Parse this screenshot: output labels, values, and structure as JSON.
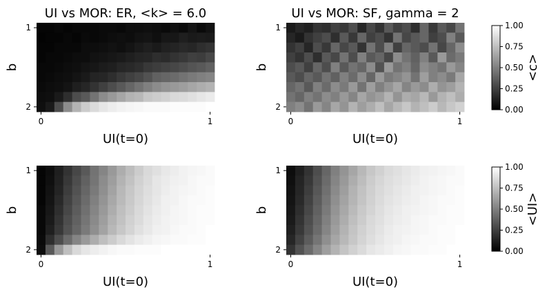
{
  "figure": {
    "background": "#ffffff"
  },
  "chart_data": [
    {
      "type": "heatmap",
      "title": "UI vs MOR: ER, <k> = 6.0",
      "xlabel": "UI(t=0)",
      "ylabel": "b",
      "x_range": [
        0,
        1
      ],
      "y_range": [
        1,
        2
      ],
      "x_ticks": [
        "0",
        "1"
      ],
      "y_ticks": [
        "1",
        "2"
      ],
      "colormap": "gray",
      "vmin": 0,
      "vmax": 1,
      "colorbar_label": "<c>",
      "values": [
        [
          0.02,
          0.02,
          0.03,
          0.02,
          0.03,
          0.03,
          0.03,
          0.04,
          0.04,
          0.03,
          0.05,
          0.05,
          0.06,
          0.05,
          0.04,
          0.06,
          0.04,
          0.08,
          0.04,
          0.07
        ],
        [
          0.01,
          0.02,
          0.02,
          0.03,
          0.02,
          0.04,
          0.03,
          0.04,
          0.05,
          0.06,
          0.05,
          0.07,
          0.08,
          0.06,
          0.09,
          0.09,
          0.12,
          0.1,
          0.11,
          0.1
        ],
        [
          0.02,
          0.02,
          0.03,
          0.03,
          0.03,
          0.05,
          0.05,
          0.06,
          0.07,
          0.06,
          0.08,
          0.1,
          0.12,
          0.1,
          0.13,
          0.14,
          0.16,
          0.15,
          0.18,
          0.2
        ],
        [
          0.02,
          0.03,
          0.03,
          0.04,
          0.05,
          0.05,
          0.07,
          0.08,
          0.09,
          0.1,
          0.12,
          0.14,
          0.15,
          0.18,
          0.17,
          0.2,
          0.22,
          0.25,
          0.24,
          0.28
        ],
        [
          0.03,
          0.03,
          0.04,
          0.05,
          0.06,
          0.08,
          0.09,
          0.11,
          0.12,
          0.15,
          0.16,
          0.18,
          0.22,
          0.24,
          0.26,
          0.28,
          0.3,
          0.33,
          0.35,
          0.38
        ],
        [
          0.03,
          0.04,
          0.05,
          0.06,
          0.08,
          0.1,
          0.14,
          0.15,
          0.18,
          0.22,
          0.25,
          0.28,
          0.32,
          0.38,
          0.4,
          0.42,
          0.45,
          0.48,
          0.5,
          0.52
        ],
        [
          0.04,
          0.05,
          0.06,
          0.08,
          0.12,
          0.15,
          0.2,
          0.25,
          0.3,
          0.35,
          0.4,
          0.45,
          0.5,
          0.55,
          0.58,
          0.6,
          0.62,
          0.65,
          0.68,
          0.7
        ],
        [
          0.05,
          0.06,
          0.1,
          0.18,
          0.3,
          0.35,
          0.45,
          0.55,
          0.6,
          0.65,
          0.7,
          0.72,
          0.78,
          0.8,
          0.82,
          0.85,
          0.86,
          0.88,
          0.9,
          0.92
        ],
        [
          0.06,
          0.1,
          0.3,
          0.55,
          0.7,
          0.8,
          0.86,
          0.9,
          0.93,
          0.95,
          0.96,
          0.97,
          0.98,
          0.98,
          0.98,
          0.99,
          0.99,
          0.99,
          0.99,
          1.0
        ]
      ]
    },
    {
      "type": "heatmap",
      "title": "UI vs MOR: SF, gamma = 2",
      "xlabel": "UI(t=0)",
      "ylabel": "b",
      "x_range": [
        0,
        1
      ],
      "y_range": [
        1,
        2
      ],
      "x_ticks": [
        "0",
        "1"
      ],
      "y_ticks": [
        "1",
        "2"
      ],
      "colormap": "gray",
      "vmin": 0,
      "vmax": 1,
      "colorbar_label": "<c>",
      "values": [
        [
          0.1,
          0.15,
          0.12,
          0.2,
          0.18,
          0.25,
          0.22,
          0.3,
          0.15,
          0.28,
          0.2,
          0.35,
          0.25,
          0.3,
          0.18,
          0.4,
          0.22,
          0.35,
          0.28,
          0.45
        ],
        [
          0.15,
          0.1,
          0.2,
          0.25,
          0.3,
          0.18,
          0.35,
          0.22,
          0.4,
          0.25,
          0.3,
          0.2,
          0.45,
          0.28,
          0.35,
          0.4,
          0.25,
          0.3,
          0.5,
          0.35
        ],
        [
          0.2,
          0.25,
          0.15,
          0.3,
          0.22,
          0.4,
          0.28,
          0.35,
          0.2,
          0.45,
          0.3,
          0.5,
          0.25,
          0.4,
          0.35,
          0.3,
          0.45,
          0.28,
          0.4,
          0.55
        ],
        [
          0.25,
          0.2,
          0.3,
          0.18,
          0.35,
          0.28,
          0.45,
          0.3,
          0.5,
          0.35,
          0.4,
          0.28,
          0.55,
          0.45,
          0.38,
          0.5,
          0.35,
          0.6,
          0.42,
          0.48
        ],
        [
          0.3,
          0.35,
          0.25,
          0.4,
          0.3,
          0.5,
          0.35,
          0.45,
          0.4,
          0.55,
          0.32,
          0.6,
          0.45,
          0.5,
          0.4,
          0.55,
          0.5,
          0.45,
          0.6,
          0.52
        ],
        [
          0.35,
          0.3,
          0.4,
          0.35,
          0.45,
          0.38,
          0.5,
          0.42,
          0.55,
          0.4,
          0.6,
          0.48,
          0.52,
          0.58,
          0.45,
          0.62,
          0.5,
          0.55,
          0.48,
          0.65
        ],
        [
          0.4,
          0.45,
          0.35,
          0.5,
          0.42,
          0.55,
          0.48,
          0.6,
          0.45,
          0.62,
          0.5,
          0.58,
          0.65,
          0.52,
          0.6,
          0.55,
          0.68,
          0.58,
          0.62,
          0.7
        ],
        [
          0.45,
          0.4,
          0.5,
          0.45,
          0.55,
          0.5,
          0.6,
          0.52,
          0.65,
          0.58,
          0.62,
          0.7,
          0.58,
          0.68,
          0.65,
          0.72,
          0.6,
          0.7,
          0.75,
          0.68
        ],
        [
          0.5,
          0.55,
          0.45,
          0.6,
          0.52,
          0.65,
          0.58,
          0.7,
          0.62,
          0.68,
          0.75,
          0.65,
          0.72,
          0.78,
          0.7,
          0.75,
          0.8,
          0.72,
          0.78,
          0.82
        ]
      ]
    },
    {
      "type": "heatmap",
      "title": "",
      "xlabel": "UI(t=0)",
      "ylabel": "b",
      "x_range": [
        0,
        1
      ],
      "y_range": [
        1,
        2
      ],
      "x_ticks": [
        "0",
        "1"
      ],
      "y_ticks": [
        "1",
        "2"
      ],
      "colormap": "gray",
      "vmin": 0,
      "vmax": 1,
      "colorbar_label": "<UI>",
      "values": [
        [
          0.02,
          0.05,
          0.12,
          0.2,
          0.28,
          0.35,
          0.45,
          0.52,
          0.6,
          0.68,
          0.74,
          0.8,
          0.85,
          0.88,
          0.91,
          0.93,
          0.95,
          0.96,
          0.97,
          0.98
        ],
        [
          0.02,
          0.06,
          0.13,
          0.22,
          0.3,
          0.38,
          0.46,
          0.55,
          0.62,
          0.7,
          0.76,
          0.82,
          0.86,
          0.9,
          0.92,
          0.94,
          0.95,
          0.97,
          0.98,
          0.98
        ],
        [
          0.02,
          0.07,
          0.14,
          0.24,
          0.32,
          0.4,
          0.48,
          0.56,
          0.64,
          0.72,
          0.78,
          0.83,
          0.87,
          0.9,
          0.93,
          0.95,
          0.96,
          0.97,
          0.98,
          0.99
        ],
        [
          0.02,
          0.08,
          0.16,
          0.26,
          0.34,
          0.42,
          0.5,
          0.58,
          0.66,
          0.73,
          0.79,
          0.84,
          0.88,
          0.91,
          0.94,
          0.95,
          0.97,
          0.98,
          0.98,
          0.99
        ],
        [
          0.03,
          0.09,
          0.18,
          0.28,
          0.36,
          0.44,
          0.52,
          0.6,
          0.68,
          0.75,
          0.8,
          0.85,
          0.89,
          0.92,
          0.94,
          0.96,
          0.97,
          0.98,
          0.99,
          0.99
        ],
        [
          0.03,
          0.1,
          0.2,
          0.3,
          0.38,
          0.46,
          0.54,
          0.62,
          0.7,
          0.76,
          0.82,
          0.86,
          0.9,
          0.93,
          0.95,
          0.96,
          0.97,
          0.98,
          0.99,
          0.99
        ],
        [
          0.03,
          0.12,
          0.22,
          0.32,
          0.4,
          0.48,
          0.56,
          0.64,
          0.72,
          0.78,
          0.83,
          0.88,
          0.91,
          0.94,
          0.95,
          0.97,
          0.98,
          0.98,
          0.99,
          1.0
        ],
        [
          0.04,
          0.18,
          0.3,
          0.42,
          0.52,
          0.6,
          0.68,
          0.75,
          0.8,
          0.85,
          0.89,
          0.92,
          0.94,
          0.96,
          0.97,
          0.98,
          0.98,
          0.99,
          0.99,
          1.0
        ],
        [
          0.05,
          0.35,
          0.6,
          0.75,
          0.85,
          0.9,
          0.93,
          0.95,
          0.97,
          0.98,
          0.98,
          0.99,
          0.99,
          0.99,
          1.0,
          1.0,
          1.0,
          1.0,
          1.0,
          1.0
        ]
      ]
    },
    {
      "type": "heatmap",
      "title": "",
      "xlabel": "UI(t=0)",
      "ylabel": "b",
      "x_range": [
        0,
        1
      ],
      "y_range": [
        1,
        2
      ],
      "x_ticks": [
        "0",
        "1"
      ],
      "y_ticks": [
        "1",
        "2"
      ],
      "colormap": "gray",
      "vmin": 0,
      "vmax": 1,
      "colorbar_label": "<UI>",
      "values": [
        [
          0.05,
          0.12,
          0.2,
          0.3,
          0.4,
          0.5,
          0.58,
          0.65,
          0.72,
          0.78,
          0.82,
          0.86,
          0.88,
          0.9,
          0.92,
          0.94,
          0.95,
          0.96,
          0.97,
          0.98
        ],
        [
          0.06,
          0.14,
          0.22,
          0.32,
          0.42,
          0.52,
          0.6,
          0.68,
          0.74,
          0.8,
          0.84,
          0.87,
          0.89,
          0.91,
          0.93,
          0.95,
          0.96,
          0.97,
          0.98,
          0.98
        ],
        [
          0.07,
          0.15,
          0.24,
          0.34,
          0.44,
          0.54,
          0.62,
          0.7,
          0.76,
          0.81,
          0.85,
          0.88,
          0.9,
          0.92,
          0.94,
          0.95,
          0.96,
          0.97,
          0.98,
          0.99
        ],
        [
          0.08,
          0.16,
          0.26,
          0.36,
          0.46,
          0.56,
          0.64,
          0.71,
          0.77,
          0.82,
          0.86,
          0.89,
          0.91,
          0.93,
          0.94,
          0.96,
          0.97,
          0.98,
          0.98,
          0.99
        ],
        [
          0.09,
          0.18,
          0.28,
          0.38,
          0.48,
          0.58,
          0.66,
          0.73,
          0.79,
          0.83,
          0.87,
          0.9,
          0.92,
          0.94,
          0.95,
          0.96,
          0.97,
          0.98,
          0.99,
          0.99
        ],
        [
          0.1,
          0.2,
          0.3,
          0.4,
          0.5,
          0.6,
          0.68,
          0.75,
          0.8,
          0.85,
          0.88,
          0.91,
          0.93,
          0.94,
          0.96,
          0.97,
          0.98,
          0.98,
          0.99,
          0.99
        ],
        [
          0.12,
          0.22,
          0.32,
          0.42,
          0.52,
          0.62,
          0.7,
          0.77,
          0.82,
          0.86,
          0.89,
          0.92,
          0.94,
          0.95,
          0.96,
          0.97,
          0.98,
          0.99,
          0.99,
          1.0
        ],
        [
          0.15,
          0.26,
          0.36,
          0.46,
          0.56,
          0.65,
          0.72,
          0.78,
          0.83,
          0.87,
          0.9,
          0.93,
          0.94,
          0.96,
          0.97,
          0.98,
          0.98,
          0.99,
          0.99,
          1.0
        ],
        [
          0.2,
          0.32,
          0.42,
          0.52,
          0.62,
          0.7,
          0.77,
          0.82,
          0.86,
          0.9,
          0.92,
          0.94,
          0.96,
          0.97,
          0.98,
          0.98,
          0.99,
          0.99,
          1.0,
          1.0
        ]
      ]
    }
  ],
  "colorbars": [
    {
      "label": "<c>",
      "ticks": [
        "0.00",
        "0.25",
        "0.50",
        "0.75",
        "1.00"
      ],
      "range": [
        0,
        1
      ]
    },
    {
      "label": "<UI>",
      "ticks": [
        "0.00",
        "0.25",
        "0.50",
        "0.75",
        "1.00"
      ],
      "range": [
        0,
        1
      ]
    }
  ]
}
